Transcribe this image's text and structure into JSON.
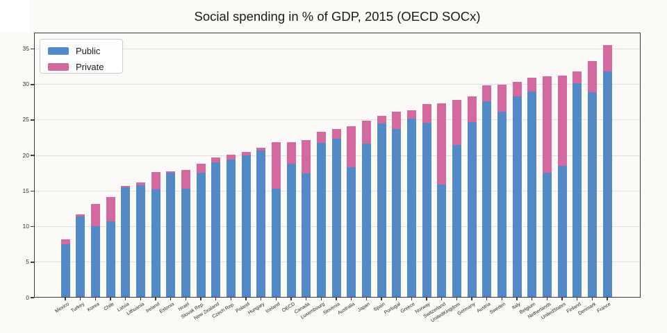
{
  "figure": {
    "background": "#fbfaf7"
  },
  "axes": {
    "yticks": [
      0,
      5,
      10,
      15,
      20,
      25,
      30,
      35
    ],
    "ymax": 37.3
  },
  "chart_data": {
    "type": "bar",
    "stacked": true,
    "title": "Social spending in % of GDP, 2015 (OECD SOCx)",
    "xlabel": "",
    "ylabel": "",
    "ylim": [
      0,
      37.3
    ],
    "yticks": [
      0,
      5,
      10,
      15,
      20,
      25,
      30,
      35
    ],
    "grid": true,
    "legend_position": "upper left",
    "categories": [
      "Mexico",
      "Turkey",
      "Korea",
      "Chile",
      "Latvia",
      "Lithuania",
      "Ireland",
      "Estonia",
      "Israel",
      "Slovak Rep.",
      "New Zealand",
      "Czech Rep.",
      "Poland",
      "Hungary",
      "Iceland",
      "OECD",
      "Canada",
      "Luxembourg",
      "Slovenia",
      "Australia",
      "Japan",
      "Spain",
      "Portugal",
      "Greece",
      "Norway",
      "Switzerland",
      "UnitedKingdom",
      "Germany",
      "Austria",
      "Sweden",
      "Italy",
      "Belgium",
      "Netherlands",
      "UnitedStates",
      "Finland",
      "Denmark",
      "France"
    ],
    "series": [
      {
        "name": "Public",
        "color": "#5289c7",
        "values": [
          7.5,
          11.4,
          10.1,
          10.7,
          15.5,
          15.8,
          15.2,
          17.6,
          15.3,
          17.6,
          19.0,
          19.4,
          20.0,
          20.7,
          15.3,
          18.8,
          17.5,
          21.8,
          22.4,
          18.4,
          21.7,
          24.5,
          23.7,
          25.2,
          24.6,
          15.9,
          21.5,
          24.7,
          27.6,
          26.2,
          28.3,
          29.0,
          17.6,
          18.6,
          30.2,
          28.9,
          31.8
        ]
      },
      {
        "name": "Private",
        "color": "#d4699f",
        "values": [
          0.7,
          0.3,
          3.1,
          3.5,
          0.2,
          0.4,
          2.5,
          0.2,
          2.7,
          1.2,
          0.7,
          0.7,
          0.5,
          0.4,
          6.6,
          3.1,
          4.7,
          1.5,
          1.3,
          5.7,
          3.2,
          1.1,
          2.5,
          1.2,
          2.6,
          11.4,
          6.3,
          3.6,
          2.3,
          3.8,
          2.1,
          2.0,
          13.5,
          12.6,
          1.6,
          4.4,
          3.7
        ]
      }
    ]
  }
}
